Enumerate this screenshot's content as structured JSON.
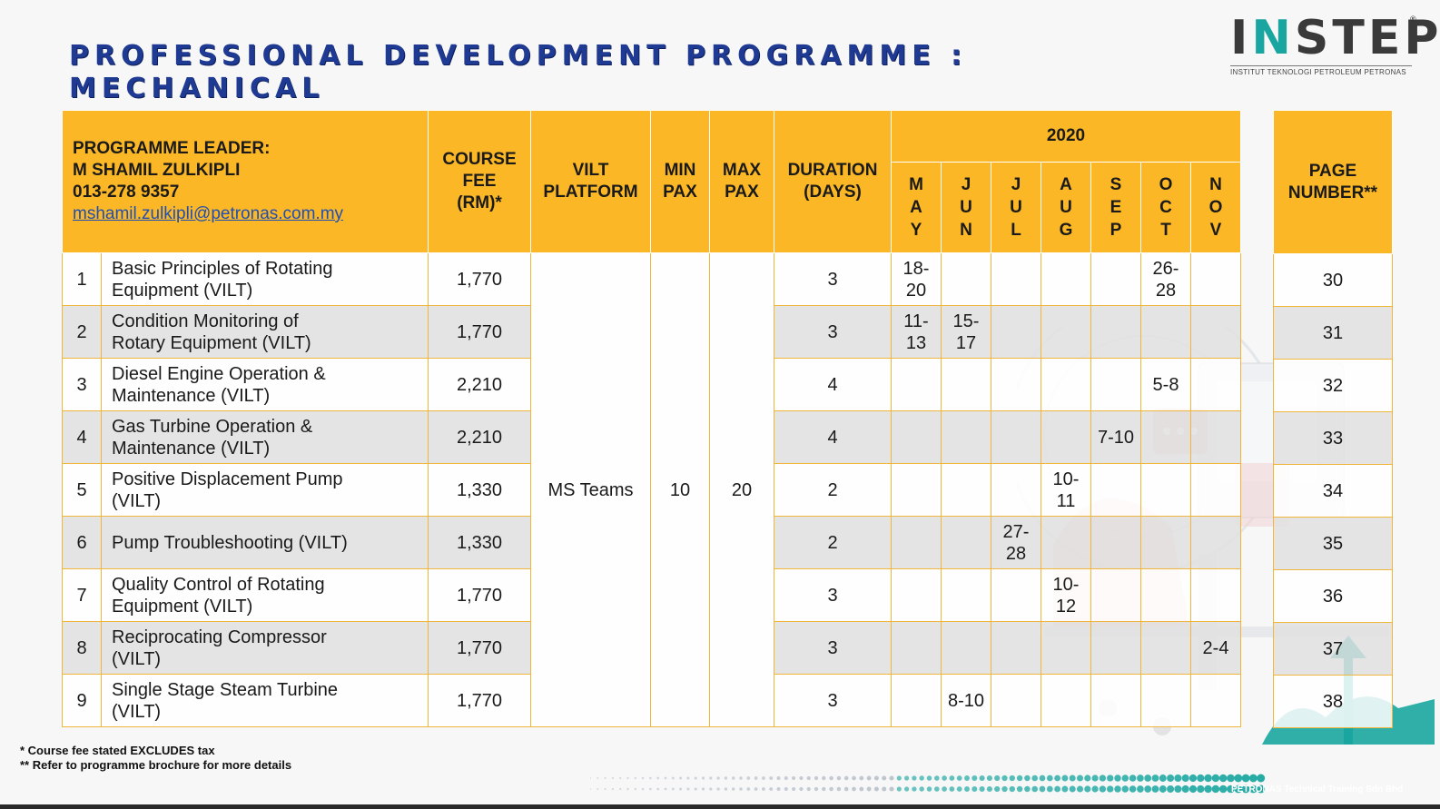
{
  "title_line1": "PROFESSIONAL DEVELOPMENT PROGRAMME :",
  "title_line2": "MECHANICAL",
  "logo": {
    "word_pre": "I",
    "word_accent": "N",
    "word_post": "STEP",
    "subtitle": "INSTITUT TEKNOLOGI PETROLEUM PETRONAS",
    "registered": "®"
  },
  "header": {
    "leader_label": "PROGRAMME LEADER:",
    "leader_name": "M SHAMIL ZULKIPLI",
    "leader_phone": "013-278 9357",
    "leader_email": "mshamil.zulkipli@petronas.com.my",
    "course_fee": [
      "COURSE",
      "FEE",
      "(RM)*"
    ],
    "vilt_platform": [
      "VILT",
      "PLATFORM"
    ],
    "min_pax": [
      "MIN",
      "PAX"
    ],
    "max_pax": [
      "MAX",
      "PAX"
    ],
    "duration": [
      "DURATION",
      "(DAYS)"
    ],
    "year": "2020",
    "months": [
      [
        "M",
        "A",
        "Y"
      ],
      [
        "J",
        "U",
        "N"
      ],
      [
        "J",
        "U",
        "L"
      ],
      [
        "A",
        "U",
        "G"
      ],
      [
        "S",
        "E",
        "P"
      ],
      [
        "O",
        "C",
        "T"
      ],
      [
        "N",
        "O",
        "V"
      ]
    ],
    "page_number": [
      "PAGE",
      "NUMBER**"
    ]
  },
  "shared": {
    "platform": "MS Teams",
    "min_pax": "10",
    "max_pax": "20"
  },
  "courses": [
    {
      "no": "1",
      "name": [
        "Basic Principles of Rotating",
        "Equipment (VILT)"
      ],
      "fee": "1,770",
      "days": "3",
      "months": [
        [
          "18-",
          "20"
        ],
        [],
        [],
        [],
        [],
        [
          "26-",
          "28"
        ],
        []
      ],
      "page": "30"
    },
    {
      "no": "2",
      "name": [
        "Condition Monitoring of",
        "Rotary Equipment (VILT)"
      ],
      "fee": "1,770",
      "days": "3",
      "months": [
        [
          "11-",
          "13"
        ],
        [
          "15-",
          "17"
        ],
        [],
        [],
        [],
        [],
        []
      ],
      "page": "31"
    },
    {
      "no": "3",
      "name": [
        "Diesel Engine Operation &",
        "Maintenance (VILT)"
      ],
      "fee": "2,210",
      "days": "4",
      "months": [
        [],
        [],
        [],
        [],
        [],
        [
          "5-8"
        ],
        []
      ],
      "page": "32"
    },
    {
      "no": "4",
      "name": [
        "Gas Turbine Operation &",
        "Maintenance (VILT)"
      ],
      "fee": "2,210",
      "days": "4",
      "months": [
        [],
        [],
        [],
        [],
        [
          "7-10"
        ],
        [],
        []
      ],
      "page": "33"
    },
    {
      "no": "5",
      "name": [
        "Positive Displacement Pump",
        "(VILT)"
      ],
      "fee": "1,330",
      "days": "2",
      "months": [
        [],
        [],
        [],
        [
          "10-",
          "11"
        ],
        [],
        [],
        []
      ],
      "page": "34"
    },
    {
      "no": "6",
      "name": [
        "Pump Troubleshooting (VILT)"
      ],
      "fee": "1,330",
      "days": "2",
      "months": [
        [],
        [],
        [
          "27-",
          "28"
        ],
        [],
        [],
        [],
        []
      ],
      "page": "35"
    },
    {
      "no": "7",
      "name": [
        "Quality Control of Rotating",
        "Equipment (VILT)"
      ],
      "fee": "1,770",
      "days": "3",
      "months": [
        [],
        [],
        [],
        [
          "10-",
          "12"
        ],
        [],
        [],
        []
      ],
      "page": "36"
    },
    {
      "no": "8",
      "name": [
        "Reciprocating Compressor",
        "(VILT)"
      ],
      "fee": "1,770",
      "days": "3",
      "months": [
        [],
        [],
        [],
        [],
        [],
        [],
        [
          "2-4"
        ]
      ],
      "page": "37"
    },
    {
      "no": "9",
      "name": [
        "Single Stage Steam Turbine",
        "(VILT)"
      ],
      "fee": "1,770",
      "days": "3",
      "months": [
        [],
        [
          "8-10"
        ],
        [],
        [],
        [],
        [],
        []
      ],
      "page": "38"
    }
  ],
  "footnotes": [
    "* Course fee stated EXCLUDES tax",
    "** Refer to programme brochure for more details"
  ],
  "company": "PETRONAS Technical Training Sdn Bhd",
  "colors": {
    "header_bg": "#fbb725",
    "title": "#1f3a93",
    "accent": "#19a6a0",
    "link": "#1f4fb5",
    "row_alt": "#e1e1e1"
  }
}
